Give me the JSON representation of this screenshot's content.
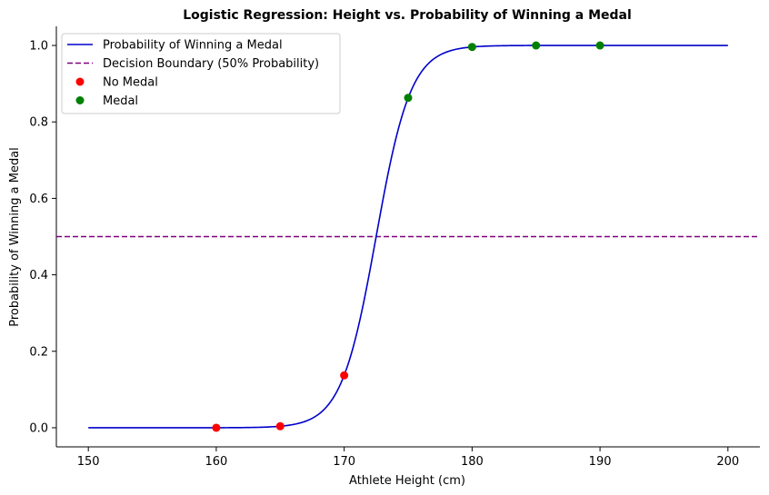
{
  "chart_data": {
    "type": "line",
    "title": "Logistic Regression: Height vs. Probability of Winning a Medal",
    "xlabel": "Athlete Height (cm)",
    "ylabel": "Probability of Winning a Medal",
    "xlim": [
      147.5,
      202.5
    ],
    "ylim": [
      -0.05,
      1.05
    ],
    "xticks": [
      150,
      160,
      170,
      180,
      190,
      200
    ],
    "xtick_labels": [
      "150",
      "160",
      "170",
      "180",
      "190",
      "200"
    ],
    "yticks": [
      0.0,
      0.2,
      0.4,
      0.6,
      0.8,
      1.0
    ],
    "ytick_labels": [
      "0.0",
      "0.2",
      "0.4",
      "0.6",
      "0.8",
      "1.0"
    ],
    "grid": false,
    "legend_position": "top-left",
    "curve": {
      "name": "Probability of Winning a Medal",
      "color": "#0000cc",
      "model": "logistic",
      "midpoint": 172.5,
      "slope": 0.735,
      "x_range": [
        150,
        200
      ]
    },
    "boundary": {
      "name": "Decision Boundary (50% Probability)",
      "y": 0.5,
      "color": "#800080",
      "style": "dashed"
    },
    "series": [
      {
        "name": "No Medal",
        "color": "#ff0000",
        "points": [
          {
            "x": 160,
            "y": 0.0
          },
          {
            "x": 165,
            "y": 0.004
          },
          {
            "x": 170,
            "y": 0.137
          }
        ]
      },
      {
        "name": "Medal",
        "color": "#008000",
        "points": [
          {
            "x": 175,
            "y": 0.863
          },
          {
            "x": 180,
            "y": 0.996
          },
          {
            "x": 185,
            "y": 1.0
          },
          {
            "x": 190,
            "y": 1.0
          }
        ]
      }
    ]
  }
}
